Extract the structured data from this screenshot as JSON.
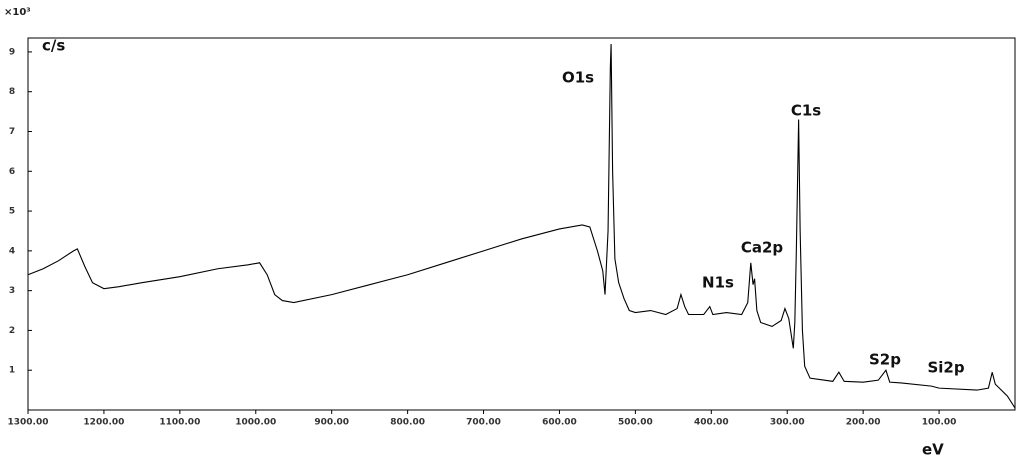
{
  "chart_data": {
    "type": "line",
    "y_label": "c/s",
    "x_label": "eV",
    "y_multiplier": "×10³",
    "xlim": [
      1300,
      0
    ],
    "ylim": [
      0,
      9.35
    ],
    "xticks": [
      {
        "value": 1300,
        "label": "1300.00"
      },
      {
        "value": 1200,
        "label": "1200.00"
      },
      {
        "value": 1100,
        "label": "1100.00"
      },
      {
        "value": 1000,
        "label": "1000.00"
      },
      {
        "value": 900,
        "label": "900.00"
      },
      {
        "value": 800,
        "label": "800.00"
      },
      {
        "value": 700,
        "label": "700.00"
      },
      {
        "value": 600,
        "label": "600.00"
      },
      {
        "value": 500,
        "label": "500.00"
      },
      {
        "value": 400,
        "label": "400.00"
      },
      {
        "value": 300,
        "label": "300.00"
      },
      {
        "value": 200,
        "label": "200.00"
      },
      {
        "value": 100,
        "label": "100.00"
      }
    ],
    "yticks": [
      1,
      2,
      3,
      4,
      5,
      6,
      7,
      8,
      9
    ],
    "color": "#000000",
    "x": [
      1300,
      1280,
      1260,
      1240,
      1235,
      1225,
      1215,
      1200,
      1180,
      1150,
      1100,
      1050,
      1010,
      995,
      985,
      975,
      965,
      950,
      900,
      850,
      800,
      750,
      700,
      650,
      600,
      570,
      560,
      550,
      543,
      540,
      536,
      533,
      532,
      530,
      527,
      522,
      515,
      508,
      500,
      480,
      460,
      445,
      440,
      435,
      430,
      410,
      402,
      398,
      380,
      360,
      352,
      348,
      345,
      343,
      340,
      335,
      320,
      308,
      303,
      298,
      292,
      290,
      288,
      285,
      283,
      280,
      277,
      270,
      240,
      232,
      225,
      200,
      180,
      170,
      165,
      150,
      110,
      100,
      50,
      35,
      30,
      26,
      10,
      0
    ],
    "values": [
      3.4,
      3.55,
      3.75,
      4.0,
      4.05,
      3.6,
      3.2,
      3.05,
      3.1,
      3.2,
      3.35,
      3.55,
      3.65,
      3.7,
      3.4,
      2.9,
      2.75,
      2.7,
      2.9,
      3.15,
      3.4,
      3.7,
      4.0,
      4.3,
      4.55,
      4.65,
      4.6,
      4.0,
      3.5,
      2.9,
      4.5,
      8.6,
      9.2,
      6.0,
      3.8,
      3.2,
      2.8,
      2.5,
      2.45,
      2.5,
      2.4,
      2.55,
      2.9,
      2.6,
      2.4,
      2.4,
      2.6,
      2.4,
      2.45,
      2.4,
      2.7,
      3.7,
      3.15,
      3.3,
      2.5,
      2.2,
      2.1,
      2.25,
      2.55,
      2.3,
      1.55,
      2.2,
      4.0,
      7.3,
      4.5,
      2.0,
      1.1,
      0.8,
      0.72,
      0.95,
      0.72,
      0.7,
      0.75,
      1.0,
      0.7,
      0.68,
      0.6,
      0.55,
      0.5,
      0.55,
      0.95,
      0.65,
      0.35,
      0.05
    ],
    "annotations": [
      "O1s",
      "C1s",
      "Ca2p",
      "N1s",
      "S2p",
      "Si2p"
    ]
  }
}
